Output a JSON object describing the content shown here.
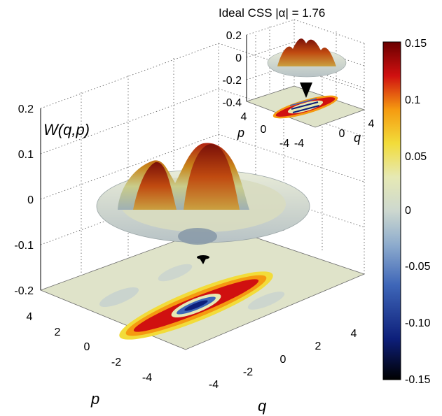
{
  "chart_data": {
    "type": "surface-3d",
    "main": {
      "zlabel": "W(q,p)",
      "xlabel": "q",
      "ylabel": "p",
      "zticks": [
        "0.2",
        "0.1",
        "0",
        "-0.1",
        "-0.2"
      ],
      "qticks": [
        "-4",
        "-2",
        "0",
        "2",
        "4"
      ],
      "pticks": [
        "4",
        "2",
        "0",
        "-2",
        "-4"
      ],
      "zlim": [
        -0.2,
        0.2
      ],
      "qlim": [
        -5,
        5
      ],
      "plim": [
        -5,
        5
      ],
      "surface": {
        "peaks": [
          {
            "q": -1.6,
            "p": 0.5,
            "w": 0.15
          },
          {
            "q": 1.4,
            "p": 0.6,
            "w": 0.15
          }
        ],
        "center_min": -0.15
      }
    },
    "inset": {
      "title": "Ideal CSS |α| = 1.76",
      "zticks": [
        "0.2",
        "0",
        "-0.2",
        "-0.4"
      ],
      "qticks": [
        "-4",
        "0",
        "4"
      ],
      "qlabel": "q",
      "pticks": [
        "4",
        "0",
        "-4"
      ],
      "plabel": "p",
      "surface": {
        "peaks": [
          {
            "q": -1.76,
            "w": 0.15
          },
          {
            "q": 0,
            "w": 0.12
          },
          {
            "q": 1.76,
            "w": 0.15
          }
        ],
        "center_min": -0.3
      }
    },
    "colorbar": {
      "ticks": [
        "0.15",
        "0.1",
        "0.05",
        "0",
        "-0.05",
        "-0.10",
        "-0.15"
      ],
      "range": [
        -0.15,
        0.15
      ],
      "colormap": [
        "#000000",
        "#0a1a6a",
        "#2b4fb0",
        "#7fa0c8",
        "#c8d8d0",
        "#e8eab8",
        "#f5e040",
        "#f59a10",
        "#d01010",
        "#6a0000"
      ]
    }
  }
}
